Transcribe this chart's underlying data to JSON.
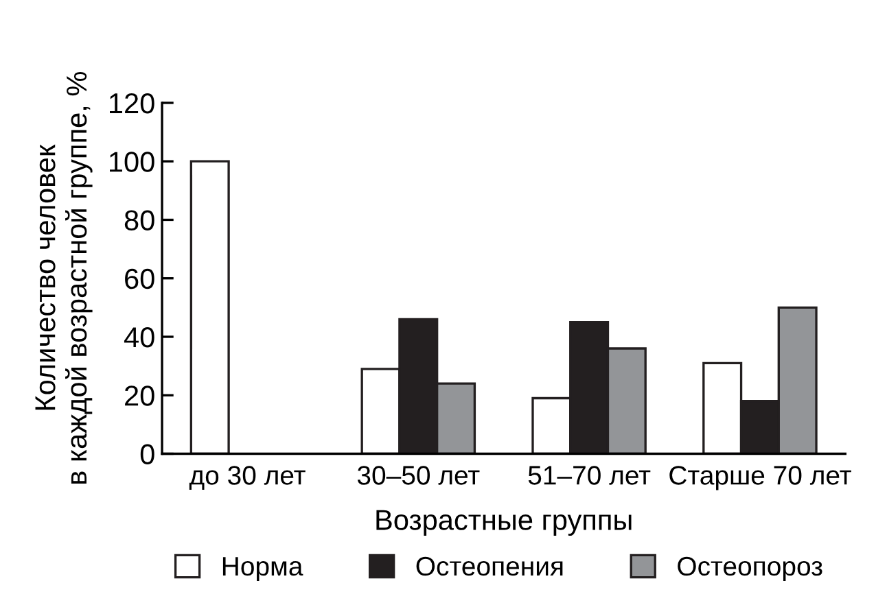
{
  "chart_data": {
    "type": "bar",
    "xlabel": "Возрастные группы",
    "ylabel": "Количество человек\nв каждой возрастной группе, %",
    "categories": [
      "до 30 лет",
      "30–50 лет",
      "51–70 лет",
      "Старше 70 лет"
    ],
    "series": [
      {
        "name": "Норма",
        "color": "#ffffff",
        "values": [
          100,
          29,
          19,
          31
        ]
      },
      {
        "name": "Остеопения",
        "color": "#231f20",
        "values": [
          null,
          46,
          45,
          18
        ]
      },
      {
        "name": "Остеопороз",
        "color": "#939598",
        "values": [
          null,
          24,
          36,
          50
        ]
      }
    ],
    "ylim": [
      0,
      120
    ],
    "yticks": [
      0,
      20,
      40,
      60,
      80,
      100,
      120
    ],
    "grid": false,
    "legend": "bottom"
  }
}
